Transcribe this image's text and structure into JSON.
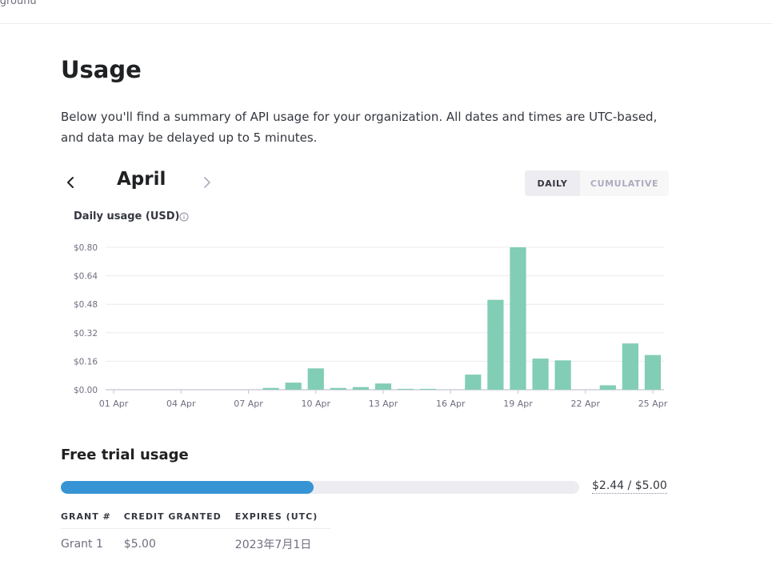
{
  "topbar": {
    "label": "ygrounu"
  },
  "page": {
    "title": "Usage",
    "description": "Below you'll find a summary of API usage for your organization. All dates and times are UTC-based, and data may be delayed up to 5 minutes."
  },
  "month_nav": {
    "month": "April"
  },
  "view_toggle": {
    "daily": "DAILY",
    "cumulative": "CUMULATIVE",
    "selected": "DAILY"
  },
  "chart_title": "Daily usage (USD)",
  "colors": {
    "bar": "#82cdb5",
    "progress": "#3694d4",
    "track": "#ececf1"
  },
  "chart_data": {
    "type": "bar",
    "title": "Daily usage (USD)",
    "categories": [
      "01 Apr",
      "02 Apr",
      "03 Apr",
      "04 Apr",
      "05 Apr",
      "06 Apr",
      "07 Apr",
      "08 Apr",
      "09 Apr",
      "10 Apr",
      "11 Apr",
      "12 Apr",
      "13 Apr",
      "14 Apr",
      "15 Apr",
      "16 Apr",
      "17 Apr",
      "18 Apr",
      "19 Apr",
      "20 Apr",
      "21 Apr",
      "22 Apr",
      "23 Apr",
      "24 Apr",
      "25 Apr"
    ],
    "values": [
      0,
      0,
      0,
      0,
      0,
      0,
      0,
      0.01,
      0.04,
      0.12,
      0.01,
      0.015,
      0.035,
      0.005,
      0.005,
      0,
      0.085,
      0.505,
      0.8,
      0.175,
      0.165,
      0,
      0.025,
      0.26,
      0.195
    ],
    "xticks": [
      "01 Apr",
      "04 Apr",
      "07 Apr",
      "10 Apr",
      "13 Apr",
      "16 Apr",
      "19 Apr",
      "22 Apr",
      "25 Apr"
    ],
    "yticks": [
      "$0.00",
      "$0.16",
      "$0.32",
      "$0.48",
      "$0.64",
      "$0.80"
    ],
    "ytick_values": [
      0,
      0.16,
      0.32,
      0.48,
      0.64,
      0.8
    ],
    "ylim": [
      0,
      0.8
    ],
    "xlabel": "",
    "ylabel": "",
    "grid": true
  },
  "free_trial": {
    "title": "Free trial usage",
    "used": 2.44,
    "total": 5.0,
    "label": "$2.44 / $5.00",
    "columns": [
      "GRANT #",
      "CREDIT GRANTED",
      "EXPIRES (UTC)"
    ],
    "rows": [
      [
        "Grant 1",
        "$5.00",
        "2023年7月1日"
      ]
    ]
  }
}
